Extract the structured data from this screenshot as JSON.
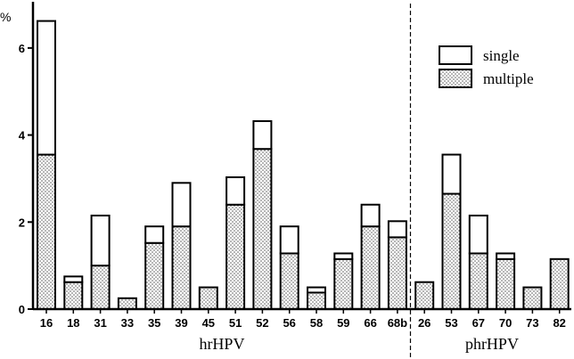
{
  "chart_data": {
    "type": "bar",
    "stacked": true,
    "ylabel": "%",
    "ylim": [
      0,
      7
    ],
    "yticks": [
      0,
      2,
      4,
      6
    ],
    "grid": false,
    "legend_position": "top-right",
    "categories": [
      "16",
      "18",
      "31",
      "33",
      "35",
      "39",
      "45",
      "51",
      "52",
      "56",
      "58",
      "59",
      "66",
      "68b",
      "26",
      "53",
      "67",
      "70",
      "73",
      "82"
    ],
    "series": [
      {
        "name": "multiple",
        "pattern": "dotted",
        "values": [
          3.55,
          0.62,
          1.0,
          0.25,
          1.52,
          1.9,
          0.5,
          2.4,
          3.68,
          1.28,
          0.38,
          1.15,
          1.9,
          1.65,
          0.62,
          2.65,
          1.28,
          1.15,
          0.5,
          1.15
        ]
      },
      {
        "name": "single",
        "pattern": "white",
        "values": [
          3.07,
          0.13,
          1.15,
          0,
          0.38,
          1.0,
          0,
          0.63,
          0.64,
          0.62,
          0.12,
          0.13,
          0.5,
          0.37,
          0,
          0.9,
          0.87,
          0.13,
          0,
          0
        ]
      }
    ],
    "groups": [
      {
        "label": "hrHPV",
        "start": 0,
        "end": 13
      },
      {
        "label": "phrHPV",
        "start": 14,
        "end": 19
      }
    ]
  },
  "colors": {
    "bar_outline": "#000000",
    "single_fill": "#ffffff",
    "multiple_dots": "#555555"
  }
}
